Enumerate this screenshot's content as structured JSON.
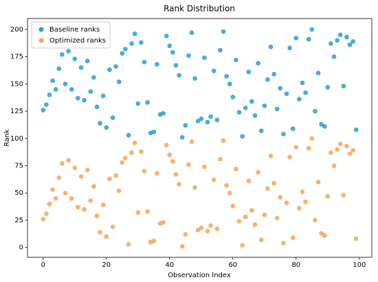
{
  "chart_data": {
    "type": "scatter",
    "title": "Rank Distribution",
    "x_label": "Observation Index",
    "y_label": "Rank",
    "x": [
      0,
      1,
      2,
      3,
      4,
      5,
      6,
      7,
      8,
      9,
      10,
      11,
      12,
      13,
      14,
      15,
      16,
      17,
      18,
      19,
      20,
      21,
      22,
      23,
      24,
      25,
      26,
      27,
      28,
      29,
      30,
      31,
      32,
      33,
      34,
      35,
      36,
      37,
      38,
      39,
      40,
      41,
      42,
      43,
      44,
      45,
      46,
      47,
      48,
      49,
      50,
      51,
      52,
      53,
      54,
      55,
      56,
      57,
      58,
      59,
      60,
      61,
      62,
      63,
      64,
      65,
      66,
      67,
      68,
      69,
      70,
      71,
      72,
      73,
      74,
      75,
      76,
      77,
      78,
      79,
      80,
      81,
      82,
      83,
      84,
      85,
      86,
      87,
      88,
      89,
      90,
      91,
      92,
      93,
      94,
      95,
      96,
      97,
      98,
      99
    ],
    "series": [
      {
        "name": "Baseline ranks",
        "color": "#2e9fcf",
        "values": [
          126,
          131,
          140,
          153,
          145,
          164,
          177,
          150,
          180,
          145,
          173,
          137,
          165,
          135,
          171,
          143,
          156,
          129,
          114,
          139,
          110,
          163,
          119,
          166,
          152,
          178,
          182,
          103,
          187,
          196,
          132,
          188,
          170,
          133,
          105,
          106,
          168,
          122,
          123,
          194,
          185,
          179,
          167,
          158,
          101,
          112,
          176,
          197,
          155,
          116,
          118,
          174,
          115,
          120,
          162,
          117,
          181,
          198,
          157,
          150,
          138,
          172,
          124,
          102,
          128,
          161,
          134,
          121,
          169,
          107,
          130,
          154,
          184,
          159,
          127,
          146,
          104,
          141,
          183,
          109,
          192,
          136,
          151,
          142,
          191,
          200,
          125,
          160,
          113,
          111,
          147,
          187,
          175,
          190,
          195,
          148,
          193,
          186,
          189,
          108
        ]
      },
      {
        "name": "Optimized ranks",
        "color": "#f5a65b",
        "values": [
          26,
          31,
          40,
          53,
          45,
          64,
          77,
          50,
          80,
          45,
          73,
          37,
          65,
          35,
          71,
          43,
          56,
          29,
          14,
          39,
          10,
          63,
          19,
          66,
          52,
          78,
          82,
          3,
          87,
          96,
          32,
          88,
          70,
          33,
          5,
          6,
          68,
          22,
          23,
          94,
          85,
          79,
          67,
          58,
          1,
          12,
          76,
          97,
          55,
          16,
          18,
          74,
          15,
          20,
          62,
          17,
          81,
          98,
          57,
          50,
          38,
          72,
          24,
          2,
          28,
          61,
          34,
          21,
          69,
          7,
          30,
          54,
          84,
          59,
          27,
          46,
          4,
          41,
          83,
          9,
          92,
          36,
          51,
          42,
          91,
          100,
          25,
          60,
          13,
          11,
          47,
          87,
          75,
          90,
          95,
          48,
          93,
          86,
          89,
          8
        ]
      }
    ],
    "xlim": [
      -4.95,
      103.95
    ],
    "ylim": [
      -9,
      210
    ],
    "xticks": [
      0,
      20,
      40,
      60,
      80,
      100
    ],
    "yticks": [
      0,
      25,
      50,
      75,
      100,
      125,
      150,
      175,
      200
    ],
    "legend": "upper left"
  }
}
